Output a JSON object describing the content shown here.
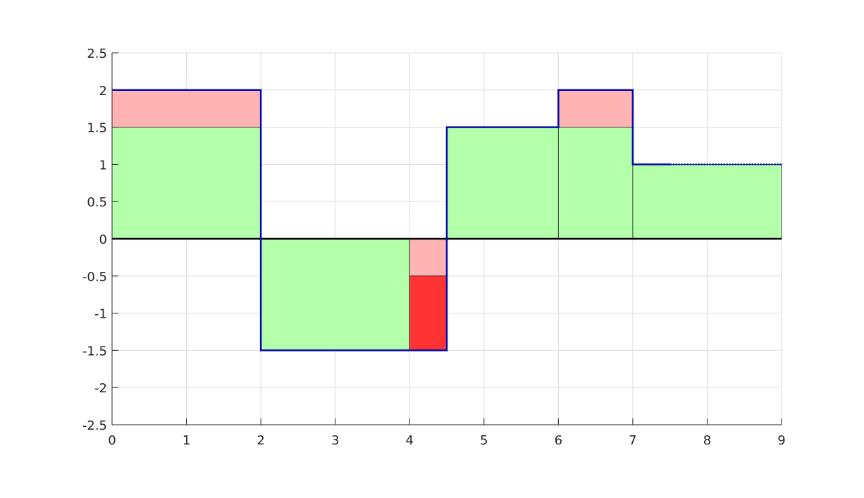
{
  "chart_data": {
    "type": "area",
    "title": "",
    "xlabel": "",
    "ylabel": "",
    "xlim": [
      0,
      9
    ],
    "ylim": [
      -2.5,
      2.5
    ],
    "grid": true,
    "x_ticks": [
      0,
      1,
      2,
      3,
      4,
      5,
      6,
      7,
      8,
      9
    ],
    "y_ticks": [
      2.5,
      2,
      1.5,
      1,
      0.5,
      0,
      -0.5,
      -1,
      -1.5,
      -2,
      -2.5
    ],
    "colors": {
      "green_fill": "#b3ffaa",
      "light_red_fill": "#ffb3b3",
      "red_fill": "#ff3333",
      "step_line": "#0000cc",
      "zero_line": "#000000",
      "grid": "#dcdcdc",
      "axis": "#262626"
    },
    "regions": [
      {
        "kind": "green",
        "x0": 0,
        "x1": 2,
        "y0": 0,
        "y1": 1.5
      },
      {
        "kind": "light_red",
        "x0": 0,
        "x1": 2,
        "y0": 1.5,
        "y1": 2
      },
      {
        "kind": "green",
        "x0": 2,
        "x1": 4,
        "y0": -1.5,
        "y1": 0
      },
      {
        "kind": "light_red",
        "x0": 4,
        "x1": 4.5,
        "y0": -0.5,
        "y1": 0
      },
      {
        "kind": "red",
        "x0": 4,
        "x1": 4.5,
        "y0": -1.5,
        "y1": -0.5
      },
      {
        "kind": "green",
        "x0": 4.5,
        "x1": 6,
        "y0": 0,
        "y1": 1.5
      },
      {
        "kind": "green",
        "x0": 6,
        "x1": 7,
        "y0": 0,
        "y1": 1.5
      },
      {
        "kind": "light_red",
        "x0": 6,
        "x1": 7,
        "y0": 1.5,
        "y1": 2
      },
      {
        "kind": "green",
        "x0": 7,
        "x1": 9,
        "y0": 0,
        "y1": 1
      }
    ],
    "step_series": {
      "x": [
        0,
        2,
        2,
        4.5,
        4.5,
        6,
        6,
        7,
        7,
        7.5
      ],
      "y": [
        2,
        2,
        -1.5,
        -1.5,
        1.5,
        1.5,
        2,
        2,
        1,
        1
      ]
    },
    "dotted_series": {
      "x": [
        7.5,
        9
      ],
      "y": [
        1,
        1
      ]
    }
  }
}
